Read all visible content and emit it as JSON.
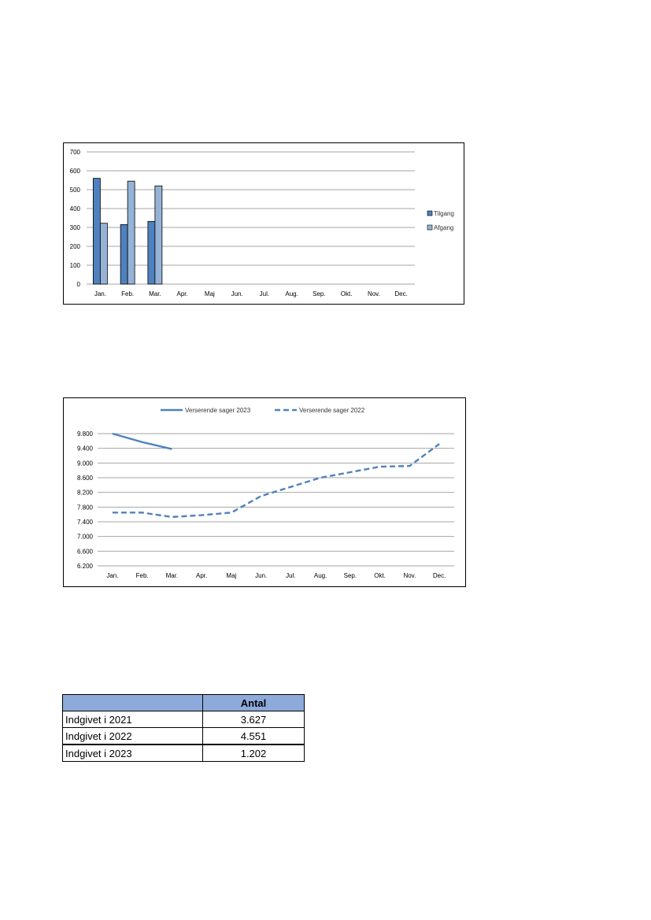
{
  "chart_data": [
    {
      "type": "bar",
      "categories": [
        "Jan.",
        "Feb.",
        "Mar.",
        "Apr.",
        "Maj",
        "Jun.",
        "Jul.",
        "Aug.",
        "Sep.",
        "Okt.",
        "Nov.",
        "Dec."
      ],
      "series": [
        {
          "name": "Tilgang",
          "values": [
            560,
            315,
            332,
            null,
            null,
            null,
            null,
            null,
            null,
            null,
            null,
            null
          ],
          "color": "#4f81bd"
        },
        {
          "name": "Afgang",
          "values": [
            322,
            545,
            520,
            null,
            null,
            null,
            null,
            null,
            null,
            null,
            null,
            null
          ],
          "color": "#95b3d7"
        }
      ],
      "ylim": [
        0,
        700
      ],
      "yticks": [
        0,
        100,
        200,
        300,
        400,
        500,
        600,
        700
      ],
      "grid": true,
      "legend": "right"
    },
    {
      "type": "line",
      "categories": [
        "Jan.",
        "Feb.",
        "Mar.",
        "Apr.",
        "Maj",
        "Jun.",
        "Jul.",
        "Aug.",
        "Sep.",
        "Okt.",
        "Nov.",
        "Dec."
      ],
      "series": [
        {
          "name": "Verserende sager 2023",
          "values": [
            9800,
            9570,
            9380,
            null,
            null,
            null,
            null,
            null,
            null,
            null,
            null,
            null
          ],
          "style": "solid",
          "color": "#4f81bd"
        },
        {
          "name": "Verserende sager 2022",
          "values": [
            7650,
            7650,
            7530,
            7580,
            7650,
            8100,
            8350,
            8600,
            8750,
            8900,
            8920,
            9520
          ],
          "style": "dashed",
          "color": "#4f81bd"
        }
      ],
      "ylim": [
        6200,
        9800
      ],
      "yticks": [
        "6.200",
        "6.600",
        "7.000",
        "7.400",
        "7.800",
        "8.200",
        "8.600",
        "9.000",
        "9.400",
        "9.800"
      ],
      "grid": true,
      "legend": "top"
    }
  ],
  "table": {
    "header": [
      "",
      "Antal"
    ],
    "rows": [
      {
        "label": "Indgivet i 2021",
        "value": "3.627"
      },
      {
        "label": "Indgivet i 2022",
        "value": "4.551"
      },
      {
        "label": "Indgivet i 2023",
        "value": "1.202"
      }
    ]
  }
}
